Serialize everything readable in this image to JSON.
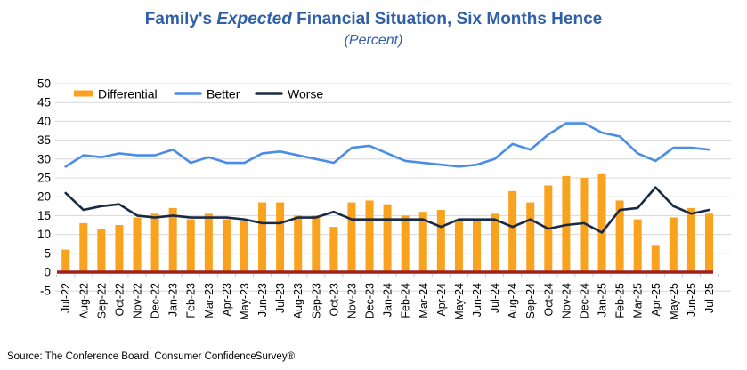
{
  "header": {
    "title_prefix": "Family's",
    "title_emphasis": "Expected",
    "title_suffix": "Financial Situation, Six Months Hence",
    "subtitle": "(Percent)"
  },
  "footer": {
    "source": "Source: The Conference Board, Consumer Confidence",
    "trademark": "Survey®"
  },
  "colors": {
    "title_blue": "#2F5FA7",
    "differential_orange": "#F9A21D",
    "better_blue": "#4A8DE9",
    "worse_navy": "#1B2A44",
    "zero_line_red": "#A02020",
    "gridline_gray": "#D8D8D8",
    "tick_gray": "#C8C8C8"
  },
  "chart_data": {
    "type": "bar",
    "title": "Family's Expected Financial Situation, Six Months Hence",
    "subtitle": "(Percent)",
    "xlabel": "",
    "ylabel": "",
    "ylim": [
      -5,
      50
    ],
    "y_ticks": [
      50,
      45,
      40,
      35,
      30,
      25,
      20,
      15,
      10,
      5,
      0,
      -5
    ],
    "grid": "horizontal",
    "legend_position": "top-left",
    "zero_line_color": "#A02020",
    "categories": [
      "Jul-22",
      "Aug-22",
      "Sep-22",
      "Oct-22",
      "Nov-22",
      "Dec-22",
      "Jan-23",
      "Feb-23",
      "Mar-23",
      "Apr-23",
      "May-23",
      "Jun-23",
      "Jul-23",
      "Aug-23",
      "Sep-23",
      "Oct-23",
      "Nov-23",
      "Dec-23",
      "Jan-24",
      "Feb-24",
      "Mar-24",
      "Apr-24",
      "May-24",
      "Jun-24",
      "Jul-24",
      "Aug-24",
      "Sep-24",
      "Oct-24",
      "Nov-24",
      "Dec-24",
      "Jan-25",
      "Feb-25",
      "Mar-25",
      "Apr-25",
      "May-25",
      "Jun-25",
      "Jul-25"
    ],
    "series": [
      {
        "name": "Differential",
        "kind": "bar",
        "color": "#F9A21D",
        "values": [
          6,
          13,
          11.5,
          12.5,
          14.5,
          15.5,
          17,
          14,
          15.5,
          14,
          13.5,
          18.5,
          18.5,
          15,
          15,
          12,
          18.5,
          19,
          18,
          15,
          16,
          16.5,
          14,
          14,
          15.5,
          21.5,
          18.5,
          23,
          25.5,
          25,
          26,
          19,
          14,
          7,
          14.5,
          17,
          15.5
        ]
      },
      {
        "name": "Better",
        "kind": "line",
        "color": "#4A8DE9",
        "values": [
          28,
          31,
          30.5,
          31.5,
          31,
          31,
          32.5,
          29,
          30.5,
          29,
          29,
          31.5,
          32,
          31,
          30,
          29,
          33,
          33.5,
          31.5,
          29.5,
          29,
          28.5,
          28,
          28.5,
          30,
          34,
          32.5,
          36.5,
          39.5,
          39.5,
          37,
          36,
          31.5,
          29.5,
          33,
          33,
          32.5
        ]
      },
      {
        "name": "Worse",
        "kind": "line",
        "color": "#1B2A44",
        "values": [
          21,
          16.5,
          17.5,
          18,
          15,
          14.5,
          15,
          14.5,
          14.5,
          14.5,
          14,
          13,
          13,
          14.5,
          14.5,
          16,
          14,
          14,
          14,
          14,
          14,
          12,
          14,
          14,
          14,
          12,
          14,
          11.5,
          12.5,
          13,
          10.5,
          16.5,
          17,
          22.5,
          17.5,
          15.5,
          16.5
        ]
      }
    ]
  }
}
